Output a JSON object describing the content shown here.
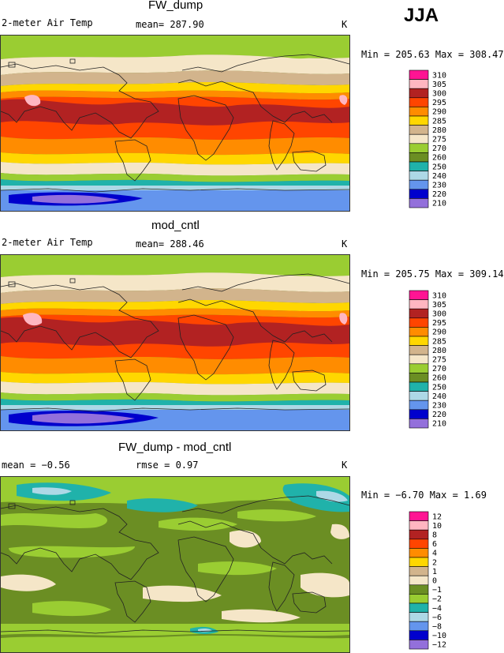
{
  "season": "JJA",
  "panels": [
    {
      "title": "FW_dump",
      "variable_label": "2-meter Air Temp",
      "stat_text": "mean=  287.90",
      "units": "K",
      "minmax": "Min = 205.63 Max = 308.47",
      "colorbar": {
        "labels": [
          "310",
          "305",
          "300",
          "295",
          "290",
          "285",
          "280",
          "275",
          "270",
          "260",
          "250",
          "240",
          "230",
          "220",
          "210"
        ],
        "colors": [
          "#ff1493",
          "#ffb6c1",
          "#b22222",
          "#ff4500",
          "#ff8c00",
          "#ffd700",
          "#d2b48c",
          "#f5e6c8",
          "#9acd32",
          "#6b8e23",
          "#20b2aa",
          "#add8e6",
          "#6495ed",
          "#0000cd",
          "#9370db"
        ]
      }
    },
    {
      "title": "mod_cntl",
      "variable_label": "2-meter Air Temp",
      "stat_text": "mean=  288.46",
      "units": "K",
      "minmax": "Min = 205.75 Max = 309.14",
      "colorbar": {
        "labels": [
          "310",
          "305",
          "300",
          "295",
          "290",
          "285",
          "280",
          "275",
          "270",
          "260",
          "250",
          "240",
          "230",
          "220",
          "210"
        ],
        "colors": [
          "#ff1493",
          "#ffb6c1",
          "#b22222",
          "#ff4500",
          "#ff8c00",
          "#ffd700",
          "#d2b48c",
          "#f5e6c8",
          "#9acd32",
          "#6b8e23",
          "#20b2aa",
          "#add8e6",
          "#6495ed",
          "#0000cd",
          "#9370db"
        ]
      }
    },
    {
      "title": "FW_dump - mod_cntl",
      "mean_text": "mean =  −0.56",
      "rmse_text": "rmse =   0.97",
      "units": "K",
      "minmax": "Min =  −6.70 Max =   1.69",
      "colorbar": {
        "labels": [
          "12",
          "10",
          "8",
          "6",
          "4",
          "2",
          "1",
          "0",
          "−1",
          "−2",
          "−4",
          "−6",
          "−8",
          "−10",
          "−12"
        ],
        "colors": [
          "#ff1493",
          "#ffb6c1",
          "#b22222",
          "#ff4500",
          "#ff8c00",
          "#ffd700",
          "#d2b48c",
          "#f5e6c8",
          "#6b8e23",
          "#9acd32",
          "#20b2aa",
          "#add8e6",
          "#6495ed",
          "#0000cd",
          "#9370db"
        ]
      }
    }
  ],
  "chart_data": [
    {
      "type": "heatmap",
      "title": "FW_dump",
      "variable": "2-meter Air Temp",
      "units": "K",
      "mean": 287.9,
      "min": 205.63,
      "max": 308.47,
      "contour_levels": [
        210,
        220,
        230,
        240,
        250,
        260,
        270,
        275,
        280,
        285,
        290,
        295,
        300,
        305,
        310
      ]
    },
    {
      "type": "heatmap",
      "title": "mod_cntl",
      "variable": "2-meter Air Temp",
      "units": "K",
      "mean": 288.46,
      "min": 205.75,
      "max": 309.14,
      "contour_levels": [
        210,
        220,
        230,
        240,
        250,
        260,
        270,
        275,
        280,
        285,
        290,
        295,
        300,
        305,
        310
      ]
    },
    {
      "type": "heatmap",
      "title": "FW_dump - mod_cntl",
      "units": "K",
      "mean": -0.56,
      "rmse": 0.97,
      "min": -6.7,
      "max": 1.69,
      "contour_levels": [
        -12,
        -10,
        -8,
        -6,
        -4,
        -2,
        -1,
        0,
        1,
        2,
        4,
        6,
        8,
        10,
        12
      ]
    }
  ]
}
